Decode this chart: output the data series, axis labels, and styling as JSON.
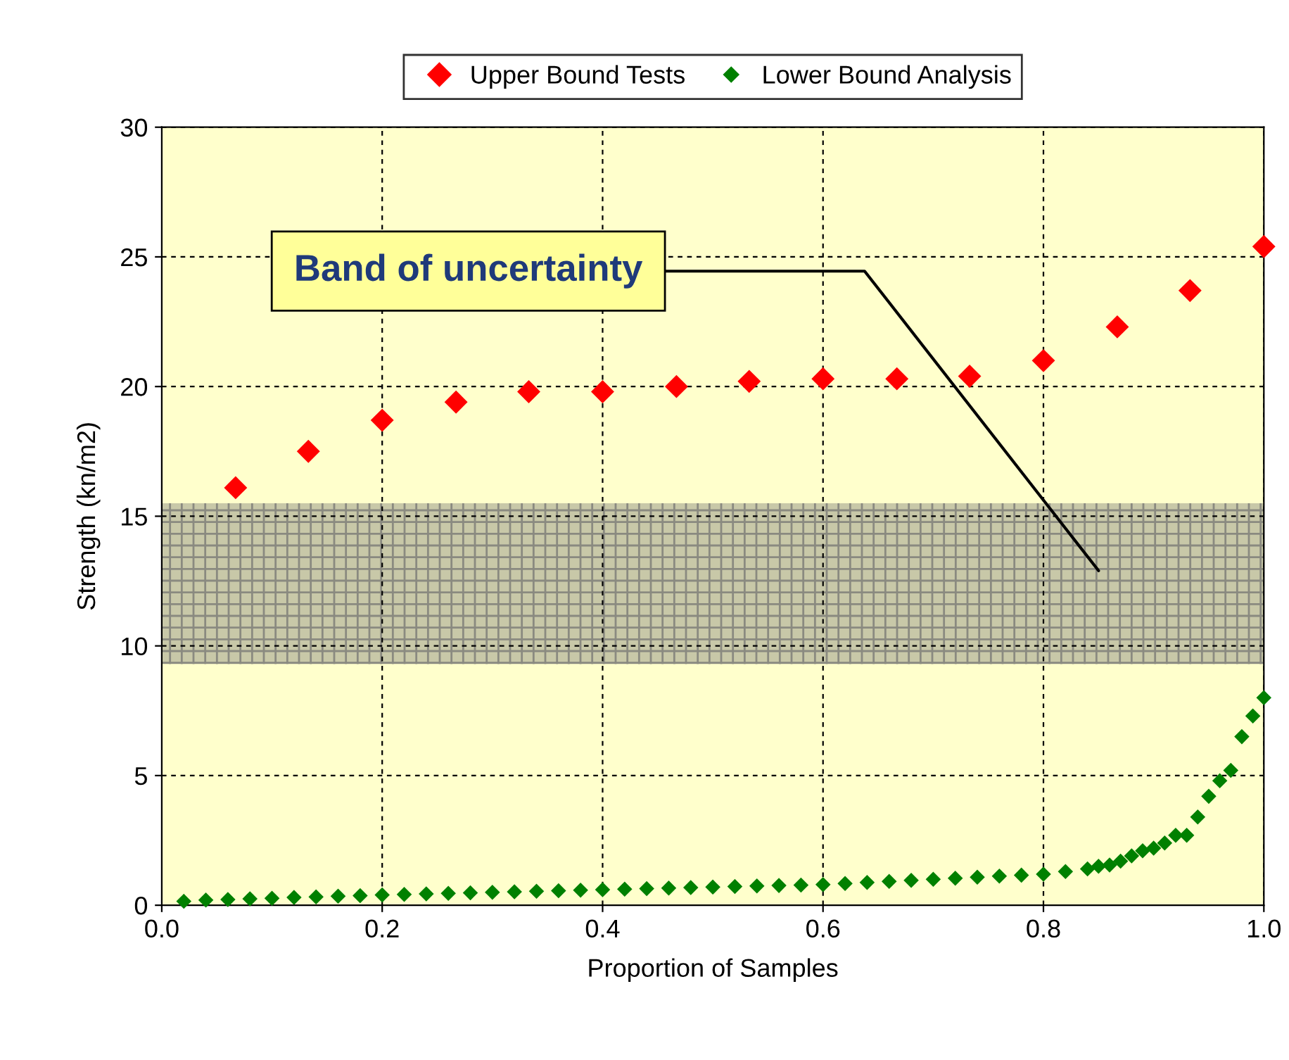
{
  "chart_data": {
    "type": "scatter",
    "xlabel": "Proportion of Samples",
    "ylabel": "Strength (kn/m2)",
    "xlim": [
      0,
      1
    ],
    "ylim": [
      0,
      30
    ],
    "xticks": [
      {
        "value": 0,
        "label": "0.0"
      },
      {
        "value": 0.2,
        "label": "0.2"
      },
      {
        "value": 0.4,
        "label": "0.4"
      },
      {
        "value": 0.6,
        "label": "0.6"
      },
      {
        "value": 0.8,
        "label": "0.8"
      },
      {
        "value": 1,
        "label": "1.0"
      }
    ],
    "yticks": [
      0,
      5,
      10,
      15,
      20,
      25,
      30
    ],
    "grid": true,
    "legend": "top",
    "marker": "diamond",
    "bands": [
      {
        "axis": "y",
        "from": 9.3,
        "to": 15.5,
        "color": "#c8c8a8"
      }
    ],
    "annotations": [
      "Band of uncertainty"
    ],
    "series": [
      {
        "name": "Upper Bound Tests",
        "color": "#ff0000",
        "x": [
          0.067,
          0.133,
          0.2,
          0.267,
          0.333,
          0.4,
          0.467,
          0.533,
          0.6,
          0.667,
          0.733,
          0.8,
          0.867,
          0.933,
          1.0
        ],
        "values": [
          16.1,
          17.5,
          18.7,
          19.4,
          19.8,
          19.8,
          20.0,
          20.2,
          20.3,
          20.3,
          20.4,
          21.0,
          22.3,
          23.7,
          25.4
        ]
      },
      {
        "name": "Lower Bound Analysis",
        "color": "#008000",
        "x": [
          0.02,
          0.04,
          0.06,
          0.08,
          0.1,
          0.12,
          0.14,
          0.16,
          0.18,
          0.2,
          0.22,
          0.24,
          0.26,
          0.28,
          0.3,
          0.32,
          0.34,
          0.36,
          0.38,
          0.4,
          0.42,
          0.44,
          0.46,
          0.48,
          0.5,
          0.52,
          0.54,
          0.56,
          0.58,
          0.6,
          0.62,
          0.64,
          0.66,
          0.68,
          0.7,
          0.72,
          0.74,
          0.76,
          0.78,
          0.8,
          0.82,
          0.84,
          0.85,
          0.86,
          0.87,
          0.88,
          0.89,
          0.9,
          0.91,
          0.92,
          0.93,
          0.94,
          0.95,
          0.96,
          0.97,
          0.98,
          0.99,
          1.0
        ],
        "values": [
          0.15,
          0.2,
          0.22,
          0.25,
          0.27,
          0.3,
          0.32,
          0.35,
          0.37,
          0.4,
          0.42,
          0.44,
          0.46,
          0.48,
          0.5,
          0.52,
          0.54,
          0.56,
          0.58,
          0.6,
          0.62,
          0.64,
          0.66,
          0.68,
          0.7,
          0.72,
          0.74,
          0.76,
          0.78,
          0.8,
          0.84,
          0.88,
          0.92,
          0.96,
          1.0,
          1.04,
          1.08,
          1.12,
          1.16,
          1.2,
          1.3,
          1.4,
          1.5,
          1.55,
          1.7,
          1.9,
          2.1,
          2.2,
          2.4,
          2.7,
          2.7,
          3.4,
          4.2,
          4.8,
          5.2,
          6.5,
          7.3,
          8.0
        ]
      }
    ]
  }
}
